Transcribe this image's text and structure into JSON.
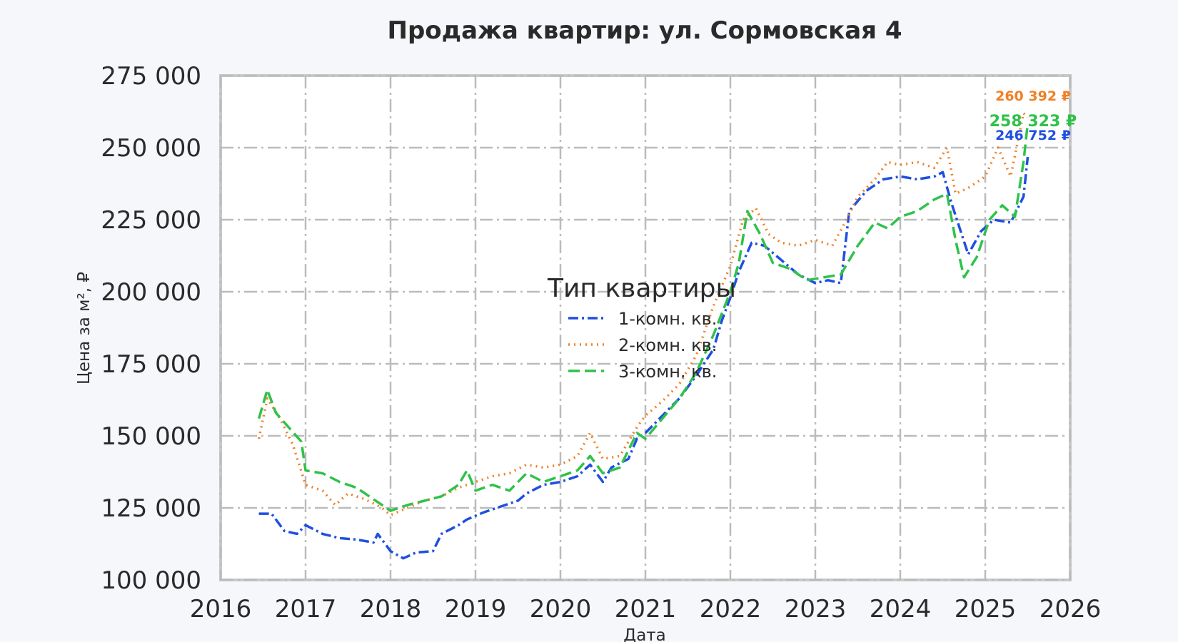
{
  "chart_data": {
    "type": "line",
    "title": "Продажа квартир: ул. Сормовская 4",
    "xlabel": "Дата",
    "ylabel": "Цена за м², ₽",
    "xlim": [
      2016,
      2026
    ],
    "ylim": [
      100000,
      275000
    ],
    "x_ticks": [
      2016,
      2017,
      2018,
      2019,
      2020,
      2021,
      2022,
      2023,
      2024,
      2025,
      2026
    ],
    "x_tick_labels": [
      "2016",
      "2017",
      "2018",
      "2019",
      "2020",
      "2021",
      "2022",
      "2023",
      "2024",
      "2025",
      "2026"
    ],
    "y_ticks": [
      100000,
      125000,
      150000,
      175000,
      200000,
      225000,
      250000,
      275000
    ],
    "y_tick_labels": [
      "100 000",
      "125 000",
      "150 000",
      "175 000",
      "200 000",
      "225 000",
      "250 000",
      "275 000"
    ],
    "grid": true,
    "legend": {
      "title": "Тип квартиры",
      "position": "center"
    },
    "series": [
      {
        "name": "1-комн. кв.",
        "color": "#1f4fe0",
        "dash": "dashdot",
        "end_label": "246 752 ₽",
        "points": [
          [
            2016.45,
            123000
          ],
          [
            2016.6,
            123000
          ],
          [
            2016.75,
            117000
          ],
          [
            2016.9,
            116000
          ],
          [
            2017.0,
            119000
          ],
          [
            2017.2,
            116000
          ],
          [
            2017.4,
            114500
          ],
          [
            2017.6,
            114000
          ],
          [
            2017.8,
            113000
          ],
          [
            2017.85,
            116000
          ],
          [
            2018.0,
            110000
          ],
          [
            2018.15,
            107500
          ],
          [
            2018.3,
            109500
          ],
          [
            2018.5,
            110000
          ],
          [
            2018.6,
            116000
          ],
          [
            2018.8,
            119000
          ],
          [
            2018.9,
            121000
          ],
          [
            2019.1,
            123500
          ],
          [
            2019.3,
            125500
          ],
          [
            2019.5,
            127500
          ],
          [
            2019.6,
            130000
          ],
          [
            2019.8,
            133000
          ],
          [
            2020.0,
            134000
          ],
          [
            2020.2,
            136000
          ],
          [
            2020.35,
            140000
          ],
          [
            2020.5,
            134000
          ],
          [
            2020.6,
            139000
          ],
          [
            2020.8,
            142000
          ],
          [
            2020.9,
            149000
          ],
          [
            2021.0,
            151000
          ],
          [
            2021.2,
            157000
          ],
          [
            2021.4,
            163000
          ],
          [
            2021.6,
            171000
          ],
          [
            2021.8,
            180000
          ],
          [
            2021.9,
            190000
          ],
          [
            2022.0,
            198000
          ],
          [
            2022.1,
            207000
          ],
          [
            2022.25,
            217000
          ],
          [
            2022.4,
            216000
          ],
          [
            2022.6,
            211000
          ],
          [
            2022.8,
            206000
          ],
          [
            2023.0,
            203000
          ],
          [
            2023.15,
            204000
          ],
          [
            2023.3,
            203000
          ],
          [
            2023.4,
            228000
          ],
          [
            2023.6,
            235000
          ],
          [
            2023.8,
            239000
          ],
          [
            2024.0,
            240000
          ],
          [
            2024.2,
            239000
          ],
          [
            2024.4,
            240000
          ],
          [
            2024.5,
            241500
          ],
          [
            2024.6,
            231000
          ],
          [
            2024.8,
            213000
          ],
          [
            2024.95,
            221000
          ],
          [
            2025.1,
            225000
          ],
          [
            2025.3,
            224000
          ],
          [
            2025.45,
            233000
          ],
          [
            2025.5,
            246752
          ]
        ]
      },
      {
        "name": "2-комн. кв.",
        "color": "#f08024",
        "dash": "dotted",
        "end_label": "260 392 ₽",
        "points": [
          [
            2016.45,
            149000
          ],
          [
            2016.55,
            163000
          ],
          [
            2016.7,
            156000
          ],
          [
            2016.85,
            147000
          ],
          [
            2017.0,
            133000
          ],
          [
            2017.2,
            131000
          ],
          [
            2017.35,
            126000
          ],
          [
            2017.5,
            130000
          ],
          [
            2017.7,
            128000
          ],
          [
            2017.9,
            125000
          ],
          [
            2018.0,
            122500
          ],
          [
            2018.2,
            125000
          ],
          [
            2018.4,
            127500
          ],
          [
            2018.6,
            129000
          ],
          [
            2018.8,
            132000
          ],
          [
            2019.0,
            134000
          ],
          [
            2019.2,
            136000
          ],
          [
            2019.4,
            137000
          ],
          [
            2019.6,
            140000
          ],
          [
            2019.8,
            139000
          ],
          [
            2020.0,
            140000
          ],
          [
            2020.2,
            143000
          ],
          [
            2020.35,
            151000
          ],
          [
            2020.5,
            142000
          ],
          [
            2020.7,
            143000
          ],
          [
            2020.9,
            153000
          ],
          [
            2021.0,
            157000
          ],
          [
            2021.2,
            162000
          ],
          [
            2021.4,
            168000
          ],
          [
            2021.6,
            178000
          ],
          [
            2021.8,
            195000
          ],
          [
            2022.0,
            209000
          ],
          [
            2022.15,
            225000
          ],
          [
            2022.3,
            229000
          ],
          [
            2022.45,
            220000
          ],
          [
            2022.6,
            217000
          ],
          [
            2022.8,
            216000
          ],
          [
            2023.0,
            218000
          ],
          [
            2023.2,
            216000
          ],
          [
            2023.35,
            224000
          ],
          [
            2023.5,
            233000
          ],
          [
            2023.7,
            239000
          ],
          [
            2023.85,
            245000
          ],
          [
            2024.0,
            244000
          ],
          [
            2024.2,
            245000
          ],
          [
            2024.4,
            243000
          ],
          [
            2024.55,
            250000
          ],
          [
            2024.65,
            234000
          ],
          [
            2024.8,
            236000
          ],
          [
            2025.0,
            240000
          ],
          [
            2025.15,
            250000
          ],
          [
            2025.3,
            240000
          ],
          [
            2025.45,
            262000
          ],
          [
            2025.5,
            260392
          ]
        ]
      },
      {
        "name": "3-комн. кв.",
        "color": "#2fc24a",
        "dash": "dashed",
        "end_label": "258 323 ₽",
        "points": [
          [
            2016.45,
            156000
          ],
          [
            2016.55,
            166000
          ],
          [
            2016.65,
            158000
          ],
          [
            2016.8,
            153000
          ],
          [
            2016.95,
            148000
          ],
          [
            2017.0,
            138000
          ],
          [
            2017.2,
            137000
          ],
          [
            2017.4,
            134000
          ],
          [
            2017.6,
            132000
          ],
          [
            2017.8,
            128000
          ],
          [
            2018.0,
            124000
          ],
          [
            2018.2,
            126000
          ],
          [
            2018.4,
            127500
          ],
          [
            2018.6,
            129000
          ],
          [
            2018.8,
            133000
          ],
          [
            2018.9,
            138000
          ],
          [
            2019.0,
            131000
          ],
          [
            2019.2,
            133000
          ],
          [
            2019.4,
            131000
          ],
          [
            2019.6,
            137000
          ],
          [
            2019.8,
            134000
          ],
          [
            2020.0,
            136000
          ],
          [
            2020.2,
            138000
          ],
          [
            2020.35,
            143000
          ],
          [
            2020.5,
            137000
          ],
          [
            2020.7,
            139000
          ],
          [
            2020.9,
            151000
          ],
          [
            2021.0,
            149000
          ],
          [
            2021.2,
            156000
          ],
          [
            2021.4,
            163000
          ],
          [
            2021.6,
            172000
          ],
          [
            2021.8,
            185000
          ],
          [
            2022.0,
            200000
          ],
          [
            2022.1,
            210000
          ],
          [
            2022.2,
            228000
          ],
          [
            2022.35,
            220000
          ],
          [
            2022.5,
            210000
          ],
          [
            2022.7,
            208000
          ],
          [
            2022.9,
            204000
          ],
          [
            2023.1,
            205000
          ],
          [
            2023.3,
            206000
          ],
          [
            2023.5,
            216000
          ],
          [
            2023.7,
            224000
          ],
          [
            2023.85,
            222000
          ],
          [
            2024.0,
            226000
          ],
          [
            2024.2,
            228000
          ],
          [
            2024.4,
            232000
          ],
          [
            2024.55,
            234000
          ],
          [
            2024.65,
            218000
          ],
          [
            2024.75,
            205000
          ],
          [
            2024.9,
            212000
          ],
          [
            2025.05,
            225000
          ],
          [
            2025.2,
            230000
          ],
          [
            2025.35,
            226000
          ],
          [
            2025.45,
            245000
          ],
          [
            2025.5,
            258323
          ]
        ]
      }
    ]
  }
}
